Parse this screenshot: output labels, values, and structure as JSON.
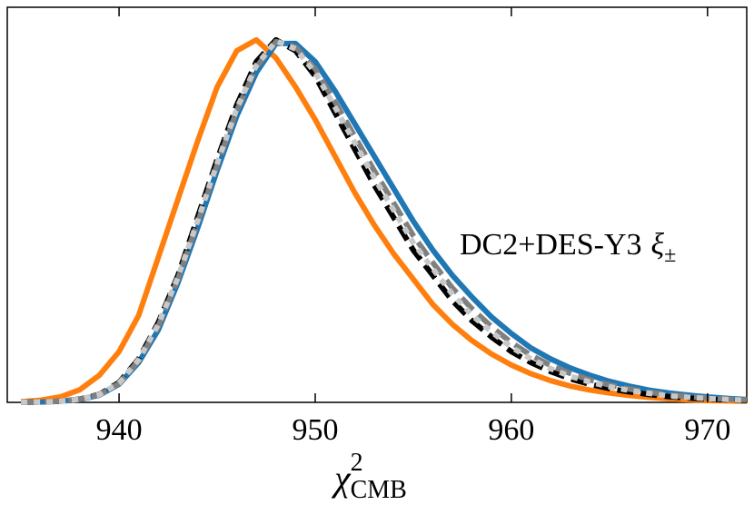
{
  "chart_data": {
    "type": "line",
    "x_label": {
      "base": "χ",
      "sup": "2",
      "sub": "CMB"
    },
    "annotation": {
      "text": "DC2+DES-Y3",
      "symbol": "ξ",
      "sub": "±"
    },
    "x": [
      935,
      936,
      937,
      938,
      939,
      940,
      941,
      942,
      943,
      944,
      945,
      946,
      947,
      948,
      949,
      950,
      951,
      952,
      953,
      954,
      955,
      956,
      957,
      958,
      959,
      960,
      961,
      962,
      963,
      964,
      965,
      966,
      967,
      968,
      969,
      970,
      971,
      972
    ],
    "series": [
      {
        "color": "#ff7f0e",
        "dash": "solid",
        "values": [
          0.002,
          0.006,
          0.015,
          0.035,
          0.075,
          0.14,
          0.24,
          0.4,
          0.56,
          0.72,
          0.87,
          0.97,
          1.0,
          0.95,
          0.87,
          0.78,
          0.68,
          0.58,
          0.49,
          0.41,
          0.34,
          0.27,
          0.215,
          0.17,
          0.133,
          0.103,
          0.079,
          0.06,
          0.045,
          0.034,
          0.026,
          0.019,
          0.014,
          0.01,
          0.007,
          0.005,
          0.004,
          0.003
        ]
      },
      {
        "color": "#1f77b4",
        "dash": "solid",
        "values": [
          0.0005,
          0.001,
          0.003,
          0.008,
          0.02,
          0.05,
          0.11,
          0.2,
          0.33,
          0.48,
          0.64,
          0.79,
          0.91,
          0.99,
          0.99,
          0.94,
          0.86,
          0.77,
          0.68,
          0.59,
          0.5,
          0.42,
          0.35,
          0.29,
          0.235,
          0.19,
          0.15,
          0.12,
          0.095,
          0.075,
          0.058,
          0.045,
          0.034,
          0.026,
          0.02,
          0.015,
          0.011,
          0.008
        ]
      },
      {
        "color": "#000000",
        "dash": "dashed",
        "values": [
          0.0005,
          0.001,
          0.003,
          0.009,
          0.022,
          0.055,
          0.12,
          0.22,
          0.35,
          0.51,
          0.67,
          0.82,
          0.94,
          1.0,
          0.97,
          0.9,
          0.8,
          0.7,
          0.6,
          0.51,
          0.42,
          0.35,
          0.28,
          0.225,
          0.18,
          0.14,
          0.11,
          0.085,
          0.065,
          0.05,
          0.038,
          0.029,
          0.022,
          0.016,
          0.012,
          0.009,
          0.007,
          0.005
        ]
      },
      {
        "color": "#808080",
        "dash": "dashed",
        "values": [
          0.0005,
          0.001,
          0.003,
          0.0085,
          0.021,
          0.052,
          0.115,
          0.21,
          0.34,
          0.495,
          0.655,
          0.805,
          0.925,
          0.995,
          0.98,
          0.92,
          0.83,
          0.735,
          0.64,
          0.55,
          0.46,
          0.385,
          0.315,
          0.258,
          0.208,
          0.165,
          0.13,
          0.102,
          0.08,
          0.062,
          0.048,
          0.037,
          0.028,
          0.021,
          0.016,
          0.012,
          0.009,
          0.0065
        ]
      },
      {
        "color": "#c8c8c8",
        "dash": "dotted",
        "values": [
          0.0005,
          0.001,
          0.003,
          0.0088,
          0.0215,
          0.053,
          0.118,
          0.215,
          0.345,
          0.5,
          0.66,
          0.81,
          0.93,
          0.997,
          0.975,
          0.91,
          0.815,
          0.718,
          0.62,
          0.53,
          0.44,
          0.368,
          0.298,
          0.24,
          0.194,
          0.152,
          0.12,
          0.093,
          0.072,
          0.056,
          0.043,
          0.033,
          0.025,
          0.018,
          0.014,
          0.0105,
          0.008,
          0.0058
        ]
      }
    ],
    "xlim": [
      934.3,
      972
    ],
    "ylim": [
      0,
      1.09
    ],
    "xticks": [
      940,
      950,
      960,
      970
    ]
  }
}
